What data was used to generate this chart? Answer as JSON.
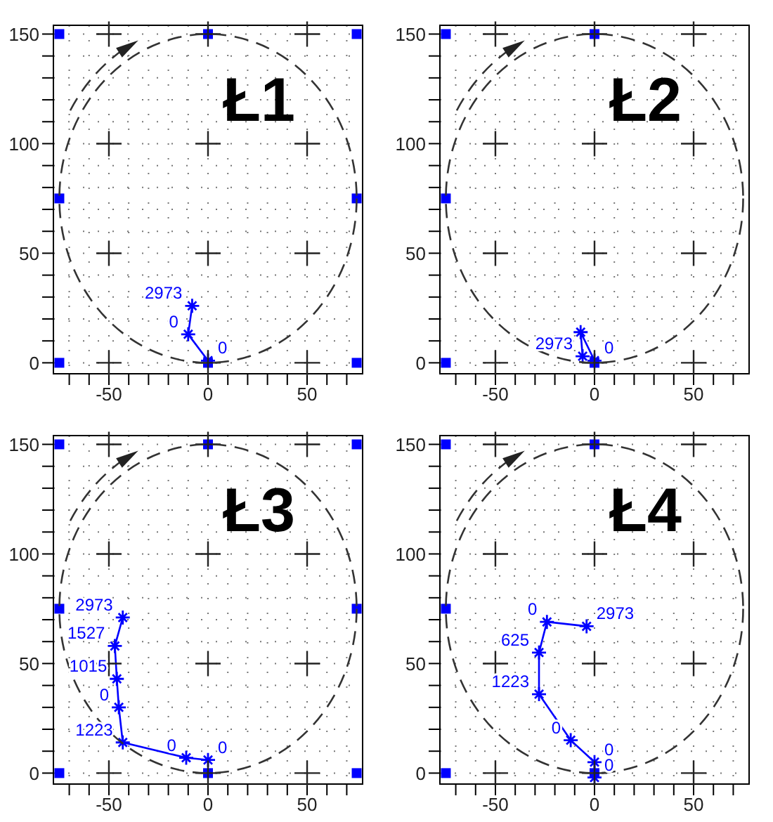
{
  "chart_data": [
    {
      "type": "line",
      "title": "Ł1",
      "xlim": [
        -78,
        78
      ],
      "ylim": [
        -5,
        154
      ],
      "xticks": [
        {
          "value": -70,
          "label": null
        },
        {
          "value": -60,
          "label": null
        },
        -50,
        {
          "value": -40,
          "label": null
        },
        {
          "value": -30,
          "label": null
        },
        {
          "value": -20,
          "label": null
        },
        {
          "value": -10,
          "label": null
        },
        0,
        {
          "value": 10,
          "label": null
        },
        {
          "value": 20,
          "label": null
        },
        {
          "value": 30,
          "label": null
        },
        {
          "value": 40,
          "label": null
        },
        50,
        {
          "value": 60,
          "label": null
        },
        {
          "value": 70,
          "label": null
        }
      ],
      "yticks": [
        0,
        {
          "value": 10,
          "label": null
        },
        {
          "value": 20,
          "label": null
        },
        {
          "value": 30,
          "label": null
        },
        {
          "value": 40,
          "label": null
        },
        50,
        {
          "value": 60,
          "label": null
        },
        {
          "value": 70,
          "label": null
        },
        {
          "value": 80,
          "label": null
        },
        {
          "value": 90,
          "label": null
        },
        100,
        {
          "value": 110,
          "label": null
        },
        {
          "value": 120,
          "label": null
        },
        {
          "value": 130,
          "label": null
        },
        {
          "value": 140,
          "label": null
        },
        150
      ],
      "grid": true,
      "series": [
        {
          "color": "#0000ff",
          "marker": "cross",
          "x": [
            0,
            -10,
            -8
          ],
          "values": [
            1,
            13,
            26
          ]
        },
        {
          "type": "scatter",
          "color": "#0000ff",
          "marker": "square",
          "x": [
            -75,
            0,
            75,
            -75,
            75,
            -75,
            0,
            75
          ],
          "values": [
            0,
            0,
            0,
            75,
            75,
            150,
            150,
            150
          ]
        }
      ],
      "annotations": [
        {
          "text": "0",
          "x": 0,
          "y": 1
        },
        {
          "text": "0",
          "x": -10,
          "y": 13
        },
        {
          "text": "2973",
          "x": -8,
          "y": 26
        }
      ]
    },
    {
      "type": "line",
      "title": "Ł2",
      "xlim": [
        -78,
        78
      ],
      "ylim": [
        -5,
        154
      ],
      "xticks": [
        {
          "value": -70,
          "label": null
        },
        {
          "value": -60,
          "label": null
        },
        -50,
        {
          "value": -40,
          "label": null
        },
        {
          "value": -30,
          "label": null
        },
        {
          "value": -20,
          "label": null
        },
        {
          "value": -10,
          "label": null
        },
        0,
        {
          "value": 10,
          "label": null
        },
        {
          "value": 20,
          "label": null
        },
        {
          "value": 30,
          "label": null
        },
        {
          "value": 40,
          "label": null
        },
        50,
        {
          "value": 60,
          "label": null
        },
        {
          "value": 70,
          "label": null
        }
      ],
      "yticks": [
        0,
        {
          "value": 10,
          "label": null
        },
        {
          "value": 20,
          "label": null
        },
        {
          "value": 30,
          "label": null
        },
        {
          "value": 40,
          "label": null
        },
        50,
        {
          "value": 60,
          "label": null
        },
        {
          "value": 70,
          "label": null
        },
        {
          "value": 80,
          "label": null
        },
        {
          "value": 90,
          "label": null
        },
        100,
        {
          "value": 110,
          "label": null
        },
        {
          "value": 120,
          "label": null
        },
        {
          "value": 130,
          "label": null
        },
        {
          "value": 140,
          "label": null
        },
        150
      ],
      "grid": true,
      "series": [
        {
          "color": "#0000ff",
          "marker": "cross",
          "x": [
            0,
            -7,
            -6
          ],
          "values": [
            1,
            14,
            3
          ]
        },
        {
          "type": "scatter",
          "color": "#0000ff",
          "marker": "square",
          "x": [
            -75,
            0,
            -75,
            -75,
            0
          ],
          "values": [
            0,
            0,
            75,
            150,
            150
          ]
        }
      ],
      "annotations": [
        {
          "text": "0",
          "x": 0,
          "y": 1
        },
        {
          "text": "2973",
          "x": -6,
          "y": 3
        }
      ]
    },
    {
      "type": "line",
      "title": "Ł3",
      "xlim": [
        -78,
        78
      ],
      "ylim": [
        -5,
        154
      ],
      "xticks": [
        {
          "value": -70,
          "label": null
        },
        {
          "value": -60,
          "label": null
        },
        -50,
        {
          "value": -40,
          "label": null
        },
        {
          "value": -30,
          "label": null
        },
        {
          "value": -20,
          "label": null
        },
        {
          "value": -10,
          "label": null
        },
        0,
        {
          "value": 10,
          "label": null
        },
        {
          "value": 20,
          "label": null
        },
        {
          "value": 30,
          "label": null
        },
        {
          "value": 40,
          "label": null
        },
        50,
        {
          "value": 60,
          "label": null
        },
        {
          "value": 70,
          "label": null
        }
      ],
      "yticks": [
        0,
        {
          "value": 10,
          "label": null
        },
        {
          "value": 20,
          "label": null
        },
        {
          "value": 30,
          "label": null
        },
        {
          "value": 40,
          "label": null
        },
        50,
        {
          "value": 60,
          "label": null
        },
        {
          "value": 70,
          "label": null
        },
        {
          "value": 80,
          "label": null
        },
        {
          "value": 90,
          "label": null
        },
        100,
        {
          "value": 110,
          "label": null
        },
        {
          "value": 120,
          "label": null
        },
        {
          "value": 130,
          "label": null
        },
        {
          "value": 140,
          "label": null
        },
        150
      ],
      "grid": true,
      "series": [
        {
          "color": "#0000ff",
          "marker": "cross",
          "x": [
            0,
            -11,
            -43,
            -45,
            -46,
            -47,
            -43
          ],
          "values": [
            6,
            7,
            14,
            30,
            43,
            58,
            71
          ]
        },
        {
          "type": "scatter",
          "color": "#0000ff",
          "marker": "square",
          "x": [
            -75,
            0,
            75,
            -75,
            75,
            -75,
            0,
            75
          ],
          "values": [
            0,
            0,
            0,
            75,
            75,
            150,
            150,
            150
          ]
        }
      ],
      "annotations": [
        {
          "text": "0",
          "x": 0,
          "y": 6
        },
        {
          "text": "0",
          "x": -11,
          "y": 7
        },
        {
          "text": "1223",
          "x": -43,
          "y": 14
        },
        {
          "text": "0",
          "x": -45,
          "y": 30
        },
        {
          "text": "1015",
          "x": -46,
          "y": 43
        },
        {
          "text": "1527",
          "x": -47,
          "y": 58
        },
        {
          "text": "2973",
          "x": -43,
          "y": 71
        }
      ]
    },
    {
      "type": "line",
      "title": "Ł4",
      "xlim": [
        -78,
        78
      ],
      "ylim": [
        -5,
        154
      ],
      "xticks": [
        {
          "value": -70,
          "label": null
        },
        {
          "value": -60,
          "label": null
        },
        -50,
        {
          "value": -40,
          "label": null
        },
        {
          "value": -30,
          "label": null
        },
        {
          "value": -20,
          "label": null
        },
        {
          "value": -10,
          "label": null
        },
        0,
        {
          "value": 10,
          "label": null
        },
        {
          "value": 20,
          "label": null
        },
        {
          "value": 30,
          "label": null
        },
        {
          "value": 40,
          "label": null
        },
        50,
        {
          "value": 60,
          "label": null
        },
        {
          "value": 70,
          "label": null
        }
      ],
      "yticks": [
        0,
        {
          "value": 10,
          "label": null
        },
        {
          "value": 20,
          "label": null
        },
        {
          "value": 30,
          "label": null
        },
        {
          "value": 40,
          "label": null
        },
        50,
        {
          "value": 60,
          "label": null
        },
        {
          "value": 70,
          "label": null
        },
        {
          "value": 80,
          "label": null
        },
        {
          "value": 90,
          "label": null
        },
        100,
        {
          "value": 110,
          "label": null
        },
        {
          "value": 120,
          "label": null
        },
        {
          "value": 130,
          "label": null
        },
        {
          "value": 140,
          "label": null
        },
        150
      ],
      "grid": true,
      "series": [
        {
          "color": "#0000ff",
          "marker": "cross",
          "x": [
            0,
            0,
            -12,
            -28,
            -28,
            -24,
            -4
          ],
          "values": [
            -2,
            5,
            15,
            36,
            55,
            69,
            67
          ]
        },
        {
          "type": "scatter",
          "color": "#0000ff",
          "marker": "square",
          "x": [
            -75,
            0,
            -75,
            -75,
            0
          ],
          "values": [
            0,
            0,
            75,
            150,
            150
          ]
        }
      ],
      "annotations": [
        {
          "text": "0",
          "x": 0,
          "y": -2
        },
        {
          "text": "0",
          "x": 0,
          "y": 5
        },
        {
          "text": "0",
          "x": -12,
          "y": 15
        },
        {
          "text": "1223",
          "x": -28,
          "y": 36
        },
        {
          "text": "625",
          "x": -28,
          "y": 55
        },
        {
          "text": "0",
          "x": -24,
          "y": 69
        },
        {
          "text": "2973",
          "x": -4,
          "y": 67
        }
      ]
    }
  ]
}
